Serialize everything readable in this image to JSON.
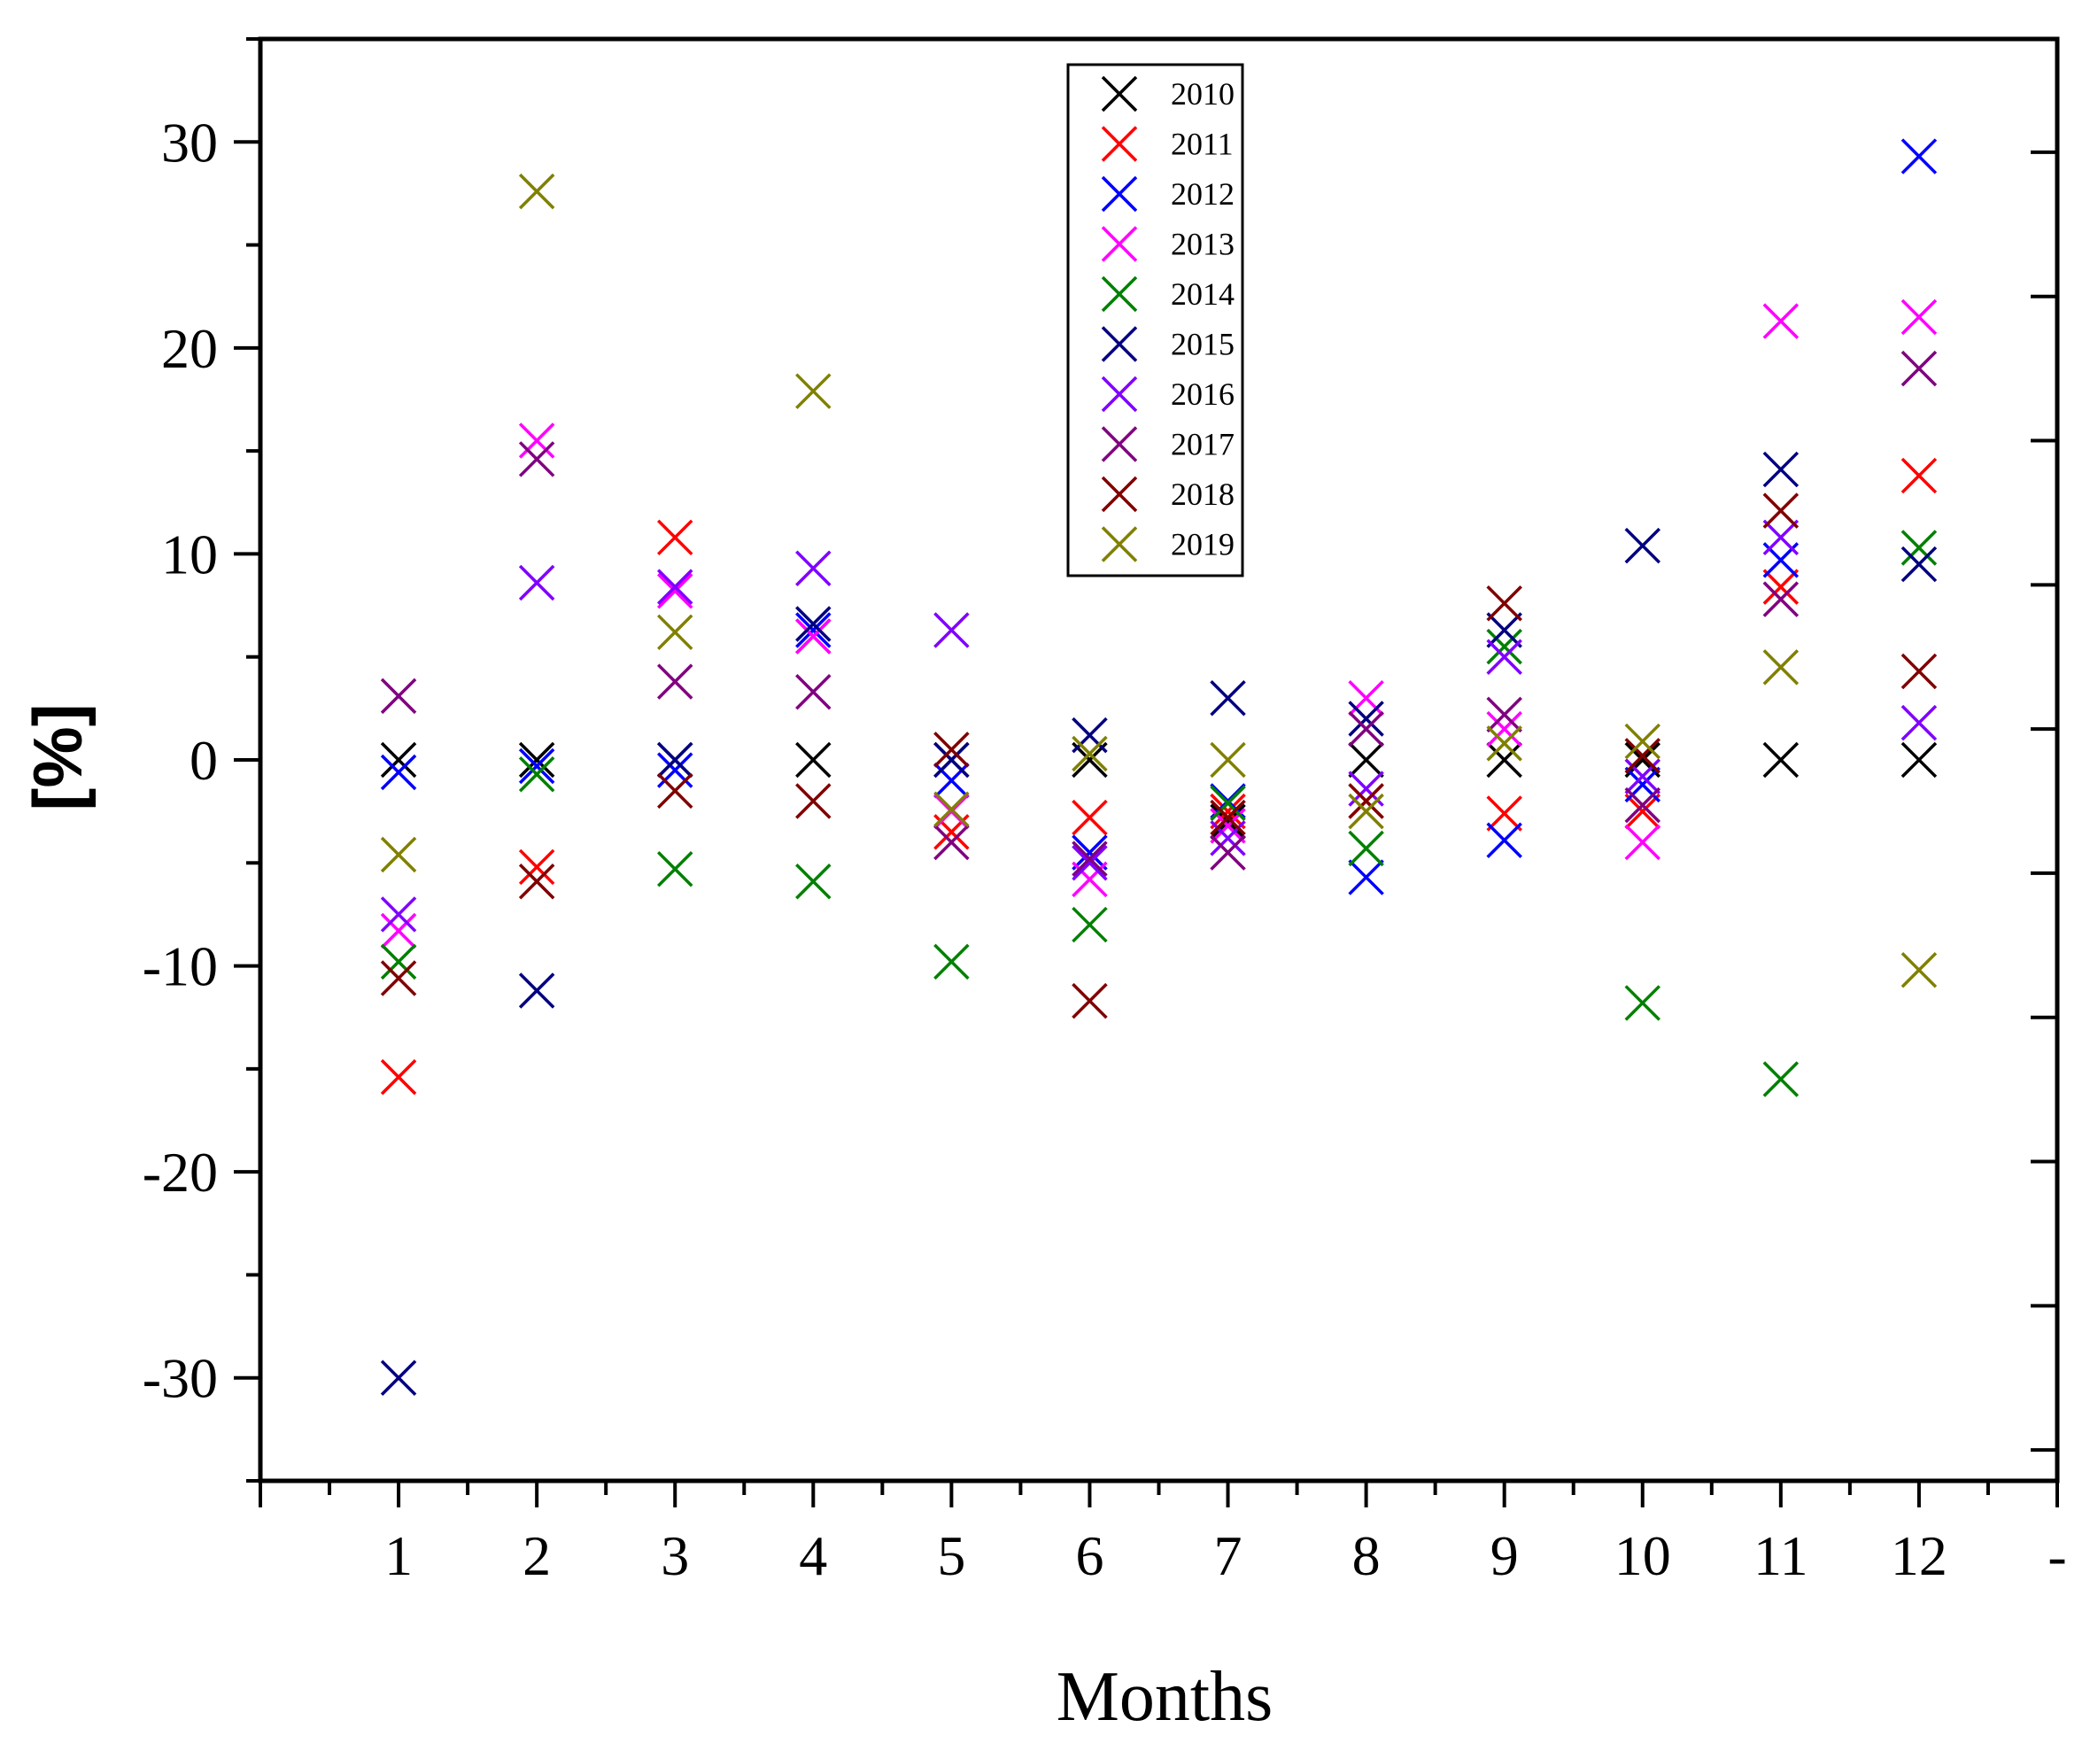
{
  "chart_data": {
    "type": "scatter",
    "title": "",
    "xlabel": "Months",
    "ylabel": "[%]",
    "xlim": [
      0,
      13
    ],
    "ylim": [
      -35,
      35
    ],
    "x_ticks": [
      1,
      2,
      3,
      4,
      5,
      6,
      7,
      8,
      9,
      10,
      11,
      12
    ],
    "x_tick_labels": [
      "1",
      "2",
      "3",
      "4",
      "5",
      "6",
      "7",
      "8",
      "9",
      "10",
      "11",
      "12"
    ],
    "x_end_label": "-",
    "y_ticks": [
      -30,
      -20,
      -10,
      0,
      10,
      20,
      30
    ],
    "y_tick_labels": [
      "-30",
      "-20",
      "-10",
      "0",
      "10",
      "20",
      "30"
    ],
    "marker": "x",
    "legend_position": "top-center",
    "series": [
      {
        "name": "2010",
        "color": "#000000",
        "x": [
          1,
          2,
          3,
          4,
          5,
          6,
          7,
          8,
          9,
          10,
          11,
          12
        ],
        "y": [
          0,
          0,
          0,
          0,
          0,
          0,
          -3,
          0,
          0,
          0,
          0,
          0
        ]
      },
      {
        "name": "2011",
        "color": "#ff0000",
        "x": [
          1,
          2,
          3,
          4,
          5,
          6,
          7,
          8,
          9,
          10,
          11,
          12
        ],
        "y": [
          -15.4,
          -5.2,
          10.8,
          6,
          -3.5,
          -2.8,
          -2.5,
          -2,
          -2.6,
          -2.5,
          8.4,
          13.8
        ]
      },
      {
        "name": "2012",
        "color": "#0000ff",
        "x": [
          1,
          2,
          3,
          4,
          5,
          6,
          7,
          8,
          9,
          10,
          11,
          12
        ],
        "y": [
          -0.6,
          -0.3,
          -0.5,
          6.3,
          -1,
          -4.5,
          -2,
          -5.7,
          -3.9,
          -1.2,
          9.7,
          29.3
        ]
      },
      {
        "name": "2013",
        "color": "#ff00ff",
        "x": [
          1,
          2,
          3,
          4,
          5,
          6,
          7,
          8,
          9,
          10,
          11,
          12
        ],
        "y": [
          -8.3,
          15.5,
          8.2,
          6,
          -2.5,
          -5.8,
          -3.2,
          3,
          1.5,
          -4,
          21.3,
          21.5
        ]
      },
      {
        "name": "2014",
        "color": "#008000",
        "x": [
          1,
          2,
          3,
          4,
          5,
          6,
          7,
          8,
          9,
          10,
          11,
          12
        ],
        "y": [
          -9.8,
          -0.7,
          -5.3,
          -5.9,
          -9.8,
          -8,
          -2.1,
          -4.3,
          5.5,
          -11.8,
          -15.5,
          10.3
        ]
      },
      {
        "name": "2015",
        "color": "#000080",
        "x": [
          1,
          2,
          3,
          4,
          5,
          6,
          7,
          8,
          9,
          10,
          11,
          12
        ],
        "y": [
          -30,
          -11.2,
          0,
          6.6,
          0,
          1.2,
          3,
          2,
          6.3,
          10.4,
          14.1,
          9.5
        ]
      },
      {
        "name": "2016",
        "color": "#8000ff",
        "x": [
          1,
          2,
          3,
          4,
          5,
          6,
          7,
          8,
          9,
          10,
          11,
          12
        ],
        "y": [
          -7.5,
          8.6,
          8.4,
          9.3,
          6.3,
          -5,
          -3.8,
          -1.4,
          5,
          -0.8,
          10.8,
          1.8
        ]
      },
      {
        "name": "2017",
        "color": "#800080",
        "x": [
          1,
          2,
          3,
          4,
          5,
          6,
          7,
          8,
          9,
          10,
          11,
          12
        ],
        "y": [
          3.1,
          14.6,
          3.8,
          3.3,
          -4,
          -4.8,
          -4.5,
          1.5,
          2.2,
          -2.2,
          7.8,
          19
        ]
      },
      {
        "name": "2018",
        "color": "#800000",
        "x": [
          1,
          2,
          3,
          4,
          5,
          6,
          7,
          8,
          9,
          10,
          11,
          12
        ],
        "y": [
          -10.6,
          -5.9,
          -1.5,
          -2,
          0.5,
          -11.7,
          -2.8,
          -2,
          7.6,
          0.2,
          12.1,
          4.3
        ]
      },
      {
        "name": "2019",
        "color": "#808000",
        "x": [
          1,
          2,
          3,
          4,
          5,
          6,
          7,
          8,
          9,
          10,
          11,
          12
        ],
        "y": [
          -4.6,
          27.6,
          6.2,
          17.9,
          -2.4,
          0.3,
          0,
          -2.5,
          0.8,
          0.9,
          4.5,
          -10.2
        ]
      }
    ]
  }
}
